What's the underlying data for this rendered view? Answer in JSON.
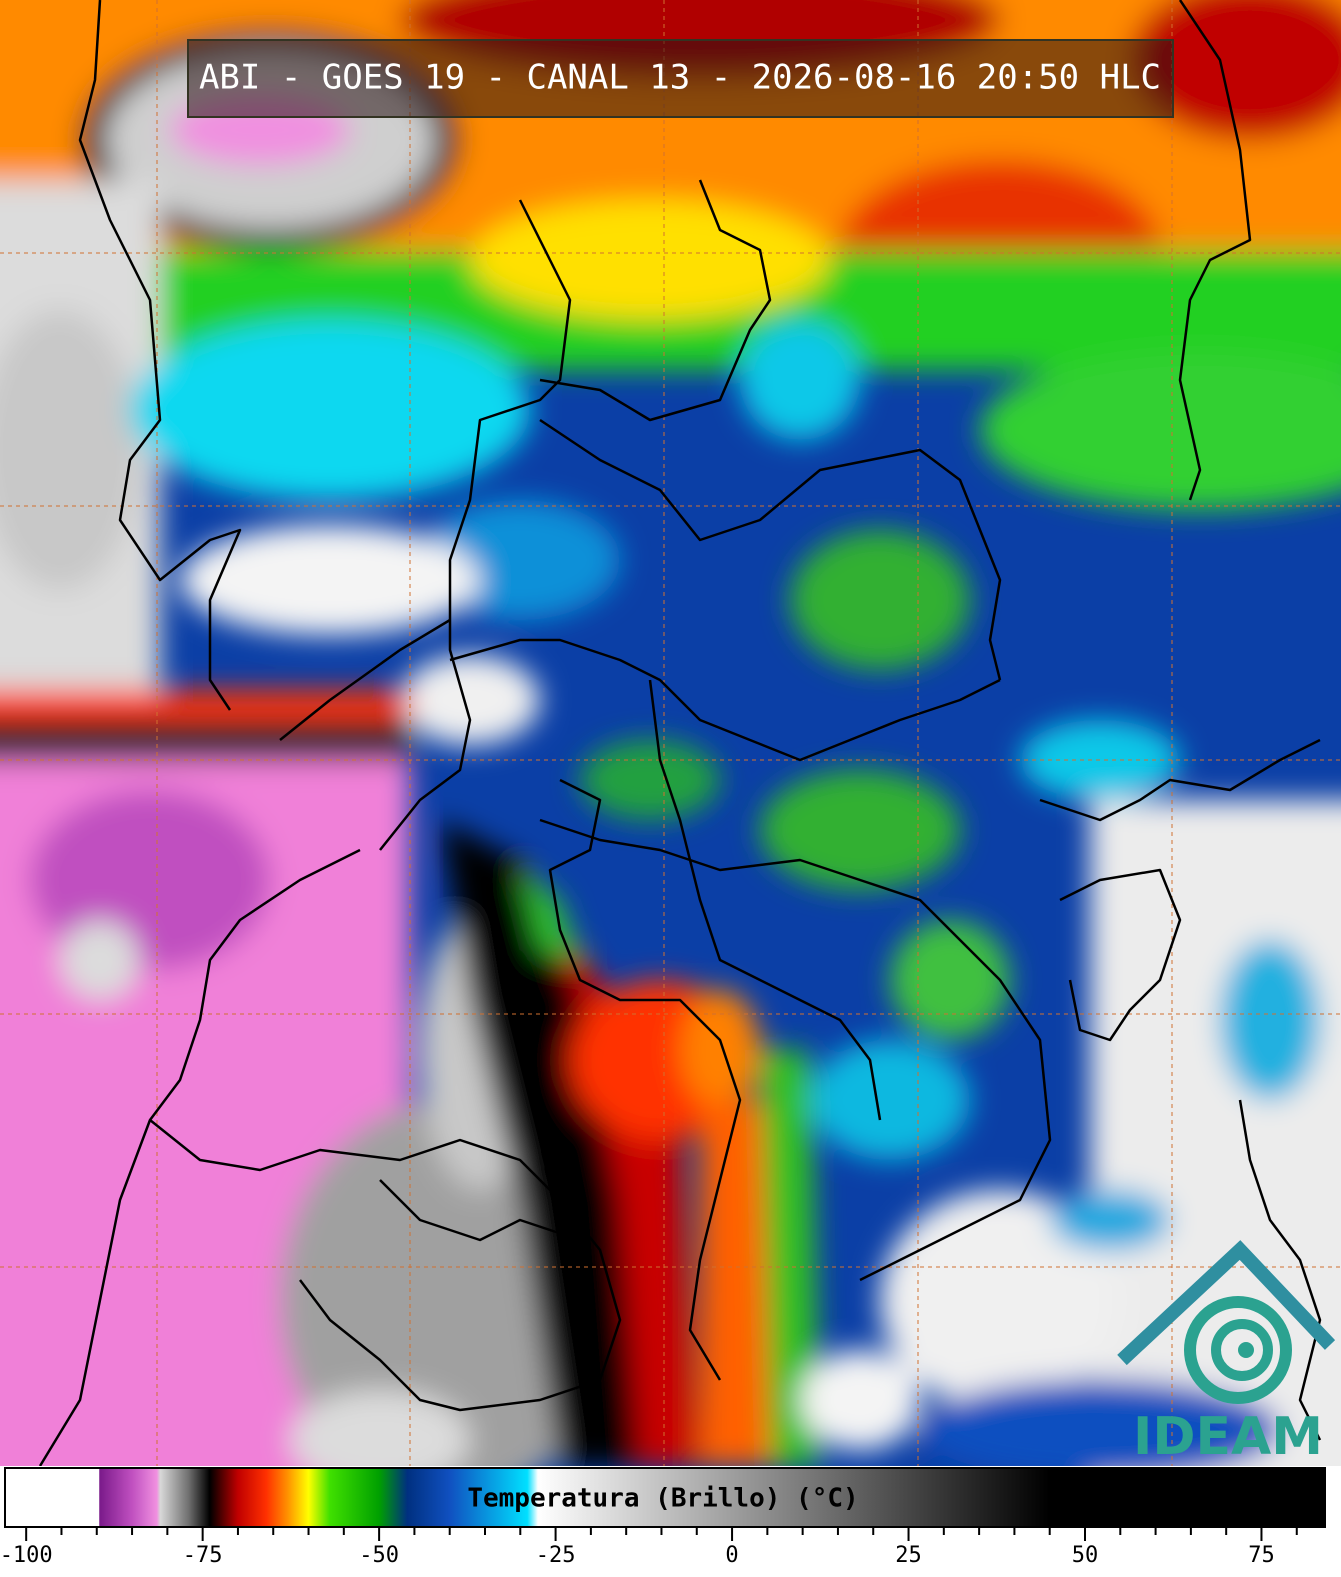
{
  "header": {
    "title": "ABI - GOES 19 - CANAL 13 - 2026-08-16 20:50 HLC"
  },
  "colorbar": {
    "label": "Temperatura (Brillo) (°C)",
    "xlim": [
      -103,
      84
    ],
    "xticks": [
      -100,
      -75,
      -50,
      -25,
      0,
      25,
      50,
      75
    ],
    "minor_ticks": [
      -95,
      -90,
      -85,
      -80,
      -70,
      -65,
      -60,
      -55,
      -45,
      -40,
      -35,
      -30,
      -20,
      -15,
      -10,
      -5,
      5,
      10,
      15,
      20,
      30,
      35,
      40,
      45,
      55,
      60,
      65,
      70,
      80
    ],
    "colormap": [
      {
        "value": -103,
        "color": "#ffffff"
      },
      {
        "value": -89.7,
        "color": "#ffffff"
      },
      {
        "value": -89.6,
        "color": "#7a1a8a"
      },
      {
        "value": -85,
        "color": "#c050c0"
      },
      {
        "value": -81.5,
        "color": "#f090e0"
      },
      {
        "value": -81,
        "color": "#d8d8d8"
      },
      {
        "value": -77,
        "color": "#707070"
      },
      {
        "value": -74,
        "color": "#000000"
      },
      {
        "value": -70,
        "color": "#c00000"
      },
      {
        "value": -66,
        "color": "#ff3000"
      },
      {
        "value": -63,
        "color": "#ff9000"
      },
      {
        "value": -60,
        "color": "#ffff00"
      },
      {
        "value": -57,
        "color": "#40e000"
      },
      {
        "value": -50,
        "color": "#00a000"
      },
      {
        "value": -46,
        "color": "#003080"
      },
      {
        "value": -40,
        "color": "#1050c0"
      },
      {
        "value": -29,
        "color": "#00e0ff"
      },
      {
        "value": -27.5,
        "color": "#ffffff"
      },
      {
        "value": 45,
        "color": "#000000"
      },
      {
        "value": 84,
        "color": "#000000"
      }
    ]
  },
  "logo": {
    "text": "IDEAM"
  }
}
